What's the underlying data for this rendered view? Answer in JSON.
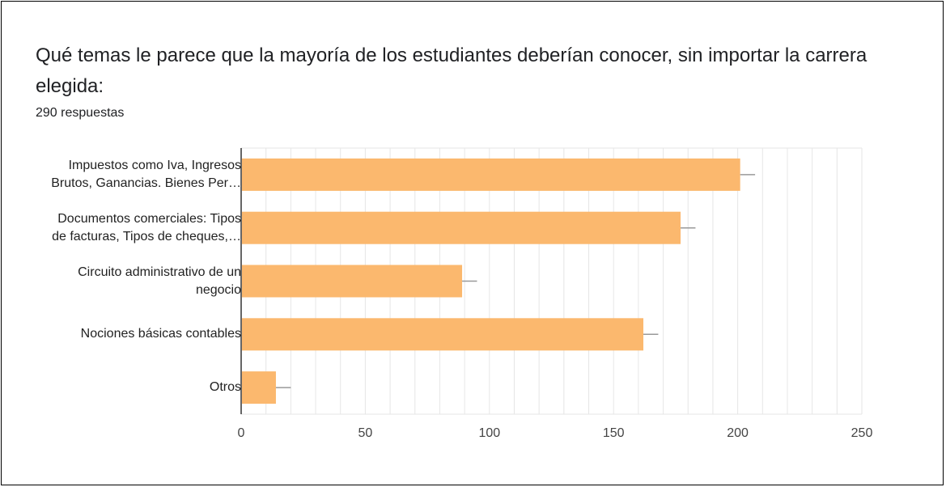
{
  "question": {
    "title": "Qué temas le parece que la mayoría de los estudiantes deberían conocer, sin importar la carrera elegida:",
    "response_count": "290 respuestas"
  },
  "colors": {
    "bar": "#fbb86e",
    "grid": "#e6e6e6",
    "axis": "#333333",
    "error": "#999999"
  },
  "chart_data": {
    "type": "bar",
    "orientation": "horizontal",
    "categories": [
      [
        "Impuestos como Iva, Ingresos",
        "Brutos, Ganancias. Bienes Per…"
      ],
      [
        "Documentos comerciales: Tipos",
        "de facturas, Tipos de cheques,…"
      ],
      [
        "Circuito administrativo de un",
        "negocio"
      ],
      [
        "Nociones básicas contables"
      ],
      [
        "Otros"
      ]
    ],
    "values": [
      201,
      177,
      89,
      162,
      14
    ],
    "xlim": [
      0,
      250
    ],
    "xticks": [
      0,
      50,
      100,
      150,
      200,
      250
    ],
    "grid": true,
    "error_bars": true
  }
}
